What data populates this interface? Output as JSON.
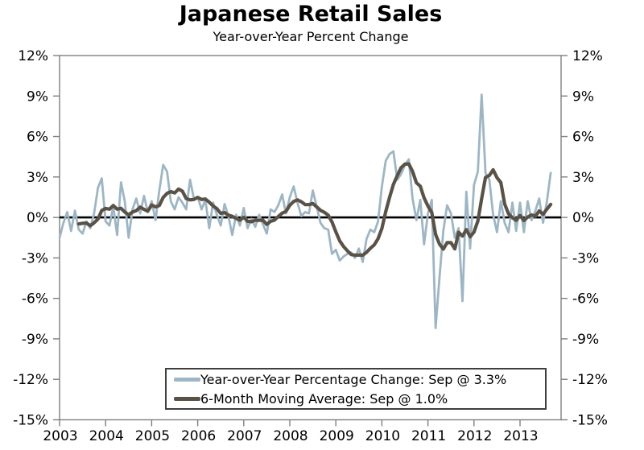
{
  "title": "Japanese Retail Sales",
  "subtitle": "Year-over-Year Percent Change",
  "legend": {
    "items": [
      {
        "label": "Year-over-Year Percentage Change: Sep @ 3.3%",
        "color": "#9db6c5"
      },
      {
        "label": "6-Month Moving Average: Sep @ 1.0%",
        "color": "#5a5246"
      }
    ]
  },
  "chart_data": {
    "type": "line",
    "title": "Japanese Retail Sales",
    "subtitle": "Year-over-Year Percent Change",
    "grid": "off",
    "legend_position": "bottom-center-inside",
    "axis": {
      "ymin": -15,
      "ymax": 12,
      "ystep": 3,
      "unit": "%",
      "y_tick_labels": [
        "12%",
        "9%",
        "6%",
        "3%",
        "0%",
        "-3%",
        "-6%",
        "-9%",
        "-12%",
        "-15%"
      ],
      "y_tick_values": [
        12,
        9,
        6,
        3,
        0,
        -3,
        -6,
        -9,
        -12,
        -15
      ],
      "x_tick_labels": [
        "2003",
        "2004",
        "2005",
        "2006",
        "2007",
        "2008",
        "2009",
        "2010",
        "2011",
        "2012",
        "2013"
      ],
      "x_domain": "monthly, Jan 2003 through Sep 2013",
      "zero_line": true
    },
    "series": [
      {
        "name": "Year-over-Year Percentage Change",
        "endpoint_label": "Sep @ 3.3%",
        "color": "#9db6c5",
        "start": "2003-01",
        "frequency": "monthly",
        "values": [
          -1.5,
          -0.4,
          0.4,
          -1.0,
          0.5,
          -0.9,
          -1.2,
          -0.3,
          -0.8,
          0.3,
          2.2,
          2.9,
          -0.3,
          -0.6,
          0.8,
          -1.3,
          2.6,
          1.2,
          -1.5,
          0.6,
          1.4,
          0.3,
          1.6,
          0.4,
          1.2,
          -0.2,
          2.0,
          3.9,
          3.4,
          1.2,
          0.6,
          1.5,
          1.1,
          0.6,
          2.8,
          1.4,
          1.5,
          0.6,
          1.3,
          -0.8,
          1.1,
          0.2,
          -0.6,
          1.0,
          0.1,
          -1.3,
          0.2,
          -0.6,
          0.7,
          -0.8,
          -0.1,
          -0.7,
          0.2,
          -0.5,
          -1.2,
          0.6,
          0.4,
          0.9,
          1.7,
          0.3,
          1.5,
          2.3,
          1.1,
          0.1,
          0.4,
          0.3,
          2.0,
          0.8,
          -0.4,
          -0.8,
          -0.9,
          -2.7,
          -2.4,
          -3.2,
          -2.9,
          -2.7,
          -2.6,
          -3.0,
          -2.3,
          -3.3,
          -1.6,
          -0.9,
          -1.1,
          -0.3,
          2.3,
          4.2,
          4.7,
          4.9,
          2.8,
          3.2,
          3.9,
          4.3,
          1.4,
          -0.2,
          1.3,
          -2.0,
          0.3,
          1.3,
          -8.2,
          -4.5,
          -1.0,
          0.9,
          0.3,
          -1.5,
          -0.8,
          -6.2,
          1.9,
          -2.3,
          2.4,
          3.4,
          9.1,
          3.3,
          2.8,
          0.2,
          -1.1,
          1.2,
          -0.4,
          -1.1,
          1.1,
          -1.0,
          1.1,
          -1.1,
          1.2,
          -0.2,
          0.5,
          1.4,
          -0.4,
          1.2,
          3.3
        ]
      },
      {
        "name": "6-Month Moving Average",
        "endpoint_label": "Sep @ 1.0%",
        "color": "#5a5246",
        "derived_from_series": 0,
        "moving_average_window": 6
      }
    ]
  }
}
